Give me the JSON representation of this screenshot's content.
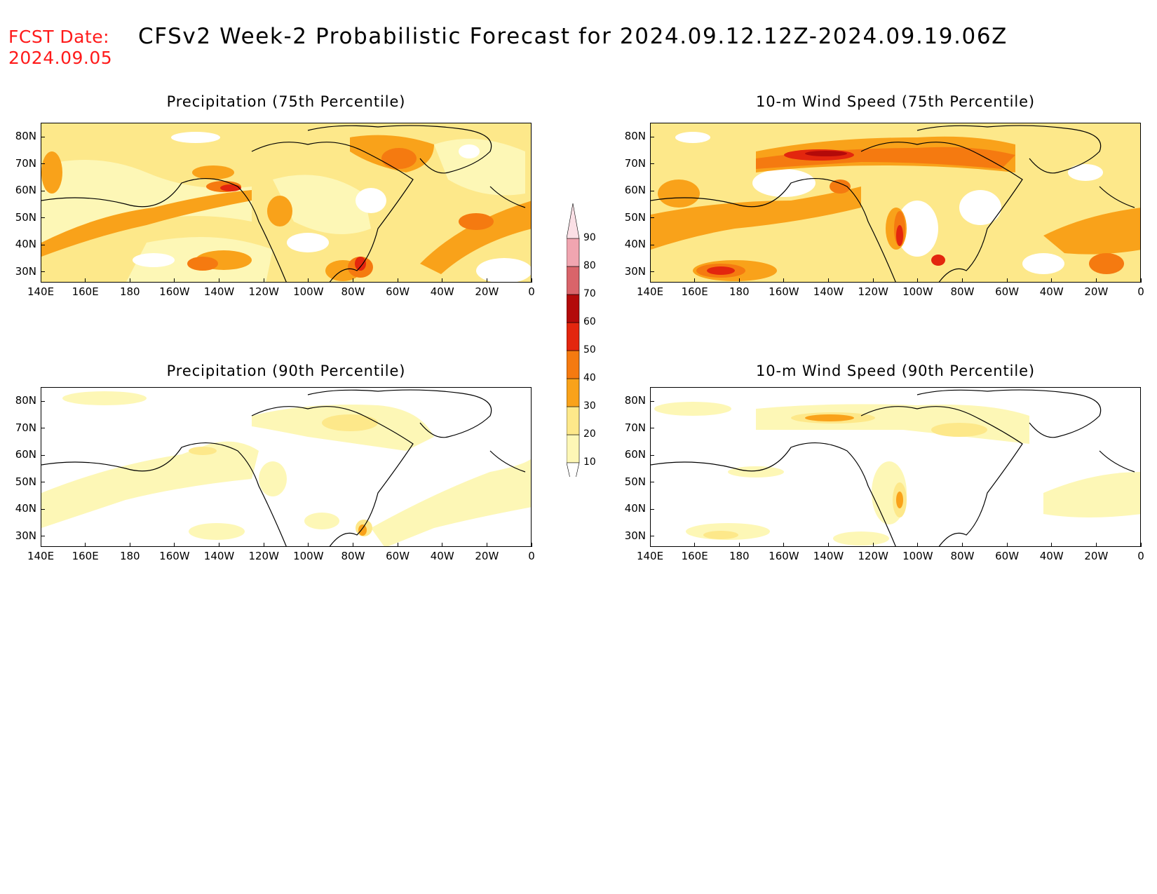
{
  "header": {
    "fcst_label": "FCST Date:",
    "fcst_date": "2024.09.05",
    "title": "CFSv2 Week-2 Probabilistic Forecast for 2024.09.12.12Z-2024.09.19.06Z",
    "label_color": "#ff1a1a"
  },
  "axes": {
    "lon_labels": [
      "140E",
      "160E",
      "180",
      "160W",
      "140W",
      "120W",
      "100W",
      "80W",
      "60W",
      "40W",
      "20W",
      "0"
    ],
    "lat_labels": [
      "80N",
      "70N",
      "60N",
      "50N",
      "40N",
      "30N"
    ]
  },
  "panels": [
    {
      "id": "precip75",
      "title": "Precipitation (75th Percentile)"
    },
    {
      "id": "wind75",
      "title": "10-m Wind Speed (75th Percentile)"
    },
    {
      "id": "precip90",
      "title": "Precipitation (90th Percentile)"
    },
    {
      "id": "wind90",
      "title": "10-m Wind Speed (90th Percentile)"
    }
  ],
  "colorbar": {
    "levels": [
      "10",
      "20",
      "30",
      "40",
      "50",
      "60",
      "70",
      "80",
      "90"
    ],
    "colors": [
      "#fdf7b6",
      "#fde88a",
      "#f9a21a",
      "#f57a10",
      "#e3260e",
      "#b30a0a",
      "#d9646a",
      "#f0a5b0",
      "#fbe0e6"
    ]
  }
}
